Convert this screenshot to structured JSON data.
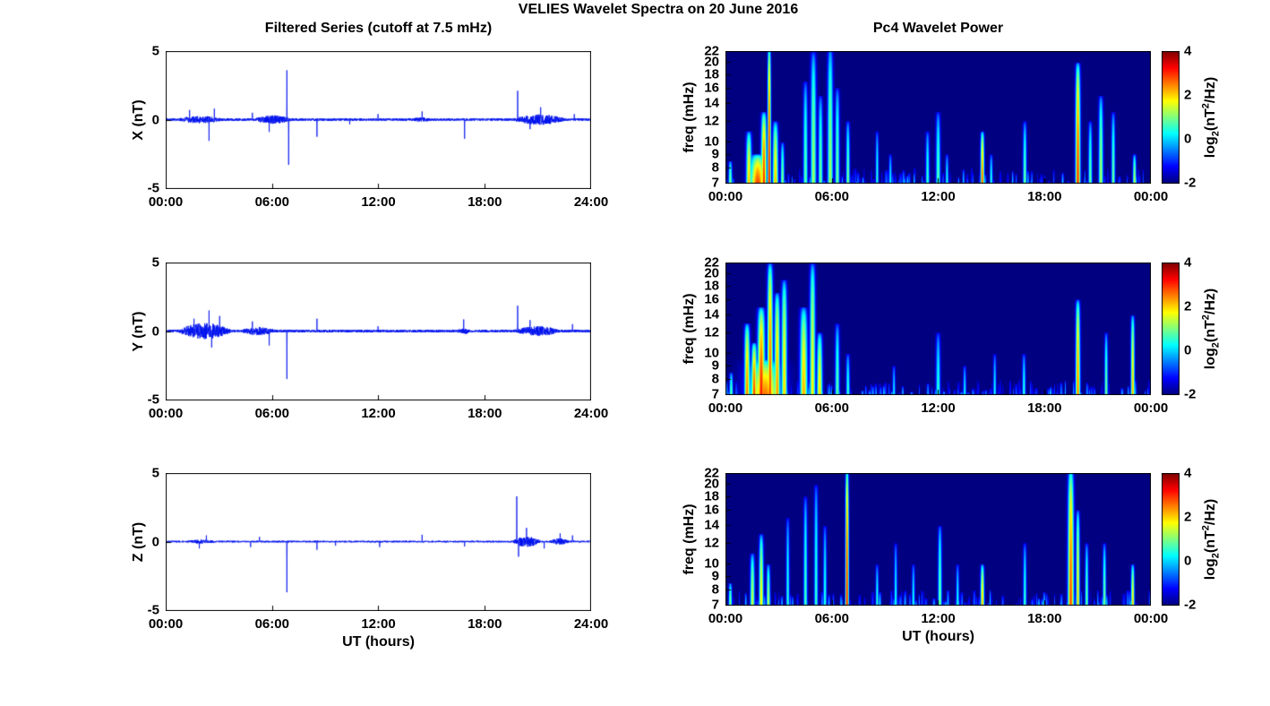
{
  "figure": {
    "title": "VELIES Wavelet Spectra on 20 June 2016",
    "left_title": "Filtered Series (cutoff at 7.5 mHz)",
    "right_title": "Pc4 Wavelet Power",
    "xlabel": "UT (hours)",
    "colorbar": {
      "ticks": [
        4,
        2,
        0,
        -2
      ],
      "clim": [
        -2,
        4
      ],
      "colormap": "jet",
      "label_parts": {
        "log": "log",
        "sub": "2",
        "mid": "(nT",
        "sup": "2",
        "end": "/Hz)"
      }
    }
  },
  "chart_data": [
    {
      "id": "x-filtered-series",
      "type": "line",
      "ylabel": "X (nT)",
      "line_color": "#0010ee",
      "ylim": [
        -5,
        5
      ],
      "yticks": [
        5,
        0,
        -5
      ],
      "xticks": [
        "00:00",
        "06:00",
        "12:00",
        "18:00",
        "24:00"
      ],
      "x_range_hours": [
        0,
        24
      ],
      "seed": 101,
      "noise_base": 0.09,
      "bursts": [
        {
          "t0": 0.7,
          "t1": 3.2,
          "amp": 0.18
        },
        {
          "t0": 5.0,
          "t1": 7.2,
          "amp": 0.22
        },
        {
          "t0": 13.9,
          "t1": 15.0,
          "amp": 0.08
        },
        {
          "t0": 19.7,
          "t1": 22.6,
          "amp": 0.3
        }
      ],
      "spikes": [
        {
          "t": 1.35,
          "amp": 0.7
        },
        {
          "t": 2.45,
          "amp": -1.55
        },
        {
          "t": 2.75,
          "amp": 0.8
        },
        {
          "t": 4.9,
          "amp": 0.5
        },
        {
          "t": 5.85,
          "amp": -0.9
        },
        {
          "t": 6.85,
          "amp": 3.6
        },
        {
          "t": 6.95,
          "amp": -3.3
        },
        {
          "t": 8.55,
          "amp": -1.25
        },
        {
          "t": 10.4,
          "amp": -0.35
        },
        {
          "t": 12.0,
          "amp": 0.4
        },
        {
          "t": 14.5,
          "amp": 0.6
        },
        {
          "t": 16.9,
          "amp": -1.4
        },
        {
          "t": 19.9,
          "amp": 2.1
        },
        {
          "t": 20.6,
          "amp": -0.7
        },
        {
          "t": 21.2,
          "amp": 0.9
        },
        {
          "t": 23.1,
          "amp": 0.4
        }
      ]
    },
    {
      "id": "x-wavelet-power",
      "type": "heatmap",
      "ylabel": "freq (mHz)",
      "freq_range_mhz": [
        7,
        22
      ],
      "freq_scale": "log",
      "yticks": [
        22,
        20,
        18,
        16,
        14,
        12,
        10,
        9,
        8,
        7
      ],
      "xticks": [
        "00:00",
        "06:00",
        "12:00",
        "18:00",
        "00:00"
      ],
      "clim": [
        -2,
        4
      ],
      "colormap": "jet",
      "background_value": -2,
      "seed": 11,
      "features": [
        {
          "t": 0.25,
          "w": 0.1,
          "ftop": 8.5,
          "v": 1.2
        },
        {
          "t": 1.3,
          "w": 0.15,
          "ftop": 11,
          "v": 2.2
        },
        {
          "t": 1.8,
          "w": 0.45,
          "ftop": 9,
          "v": 2.9
        },
        {
          "t": 2.15,
          "w": 0.15,
          "ftop": 13,
          "v": 3.1
        },
        {
          "t": 2.45,
          "w": 0.09,
          "ftop": 23,
          "v": 3.4
        },
        {
          "t": 2.8,
          "w": 0.15,
          "ftop": 12,
          "v": 2.2
        },
        {
          "t": 3.2,
          "w": 0.1,
          "ftop": 10,
          "v": 1.2
        },
        {
          "t": 4.5,
          "w": 0.12,
          "ftop": 17,
          "v": 0.9
        },
        {
          "t": 4.95,
          "w": 0.15,
          "ftop": 22,
          "v": 1.3
        },
        {
          "t": 5.35,
          "w": 0.12,
          "ftop": 15,
          "v": 1.0
        },
        {
          "t": 5.9,
          "w": 0.15,
          "ftop": 23,
          "v": 1.3
        },
        {
          "t": 6.3,
          "w": 0.12,
          "ftop": 16,
          "v": 1.0
        },
        {
          "t": 6.9,
          "w": 0.1,
          "ftop": 12,
          "v": 1.1
        },
        {
          "t": 8.55,
          "w": 0.08,
          "ftop": 11,
          "v": 0.6
        },
        {
          "t": 9.3,
          "w": 0.08,
          "ftop": 9,
          "v": 0.4
        },
        {
          "t": 11.4,
          "w": 0.1,
          "ftop": 11,
          "v": 0.7
        },
        {
          "t": 12.0,
          "w": 0.12,
          "ftop": 13,
          "v": 0.9
        },
        {
          "t": 12.5,
          "w": 0.08,
          "ftop": 9,
          "v": 0.5
        },
        {
          "t": 14.5,
          "w": 0.1,
          "ftop": 11,
          "v": 2.9
        },
        {
          "t": 15.0,
          "w": 0.08,
          "ftop": 9,
          "v": 0.6
        },
        {
          "t": 16.9,
          "w": 0.1,
          "ftop": 12,
          "v": 1.0
        },
        {
          "t": 19.9,
          "w": 0.13,
          "ftop": 20,
          "v": 3.1
        },
        {
          "t": 20.6,
          "w": 0.1,
          "ftop": 12,
          "v": 1.0
        },
        {
          "t": 21.2,
          "w": 0.12,
          "ftop": 15,
          "v": 1.4
        },
        {
          "t": 21.9,
          "w": 0.1,
          "ftop": 13,
          "v": 1.0
        },
        {
          "t": 23.1,
          "w": 0.09,
          "ftop": 9,
          "v": 1.6
        }
      ]
    },
    {
      "id": "y-filtered-series",
      "type": "line",
      "ylabel": "Y (nT)",
      "line_color": "#0010ee",
      "ylim": [
        -5,
        5
      ],
      "yticks": [
        5,
        0,
        -5
      ],
      "xticks": [
        "00:00",
        "06:00",
        "12:00",
        "18:00",
        "24:00"
      ],
      "x_range_hours": [
        0,
        24
      ],
      "seed": 202,
      "noise_base": 0.1,
      "bursts": [
        {
          "t0": 0.7,
          "t1": 3.7,
          "amp": 0.5
        },
        {
          "t0": 4.3,
          "t1": 6.2,
          "amp": 0.2
        },
        {
          "t0": 16.5,
          "t1": 17.3,
          "amp": 0.12
        },
        {
          "t0": 19.7,
          "t1": 22.3,
          "amp": 0.25
        }
      ],
      "spikes": [
        {
          "t": 1.6,
          "amp": 0.9
        },
        {
          "t": 2.45,
          "amp": 1.5
        },
        {
          "t": 2.6,
          "amp": -1.2
        },
        {
          "t": 3.05,
          "amp": 1.1
        },
        {
          "t": 4.9,
          "amp": 0.7
        },
        {
          "t": 5.85,
          "amp": -1.05
        },
        {
          "t": 6.85,
          "amp": -3.5
        },
        {
          "t": 8.55,
          "amp": 0.9
        },
        {
          "t": 12.0,
          "amp": 0.35
        },
        {
          "t": 16.85,
          "amp": 0.85
        },
        {
          "t": 19.9,
          "amp": 1.85
        },
        {
          "t": 20.6,
          "amp": 0.8
        },
        {
          "t": 23.0,
          "amp": 0.5
        }
      ]
    },
    {
      "id": "y-wavelet-power",
      "type": "heatmap",
      "ylabel": "freq (mHz)",
      "freq_range_mhz": [
        7,
        22
      ],
      "freq_scale": "log",
      "yticks": [
        22,
        20,
        18,
        16,
        14,
        12,
        10,
        9,
        8,
        7
      ],
      "xticks": [
        "00:00",
        "06:00",
        "12:00",
        "18:00",
        "00:00"
      ],
      "clim": [
        -2,
        4
      ],
      "colormap": "jet",
      "background_value": -2,
      "seed": 22,
      "features": [
        {
          "t": 0.3,
          "w": 0.1,
          "ftop": 8.5,
          "v": 1.0
        },
        {
          "t": 1.2,
          "w": 0.15,
          "ftop": 13,
          "v": 2.6
        },
        {
          "t": 1.6,
          "w": 0.15,
          "ftop": 11,
          "v": 3.0
        },
        {
          "t": 2.0,
          "w": 0.2,
          "ftop": 15,
          "v": 3.2
        },
        {
          "t": 2.2,
          "w": 0.9,
          "ftop": 9.5,
          "v": 2.6
        },
        {
          "t": 2.5,
          "w": 0.15,
          "ftop": 22,
          "v": 2.9
        },
        {
          "t": 2.9,
          "w": 0.15,
          "ftop": 17,
          "v": 2.5
        },
        {
          "t": 3.3,
          "w": 0.15,
          "ftop": 19,
          "v": 2.1
        },
        {
          "t": 4.4,
          "w": 0.2,
          "ftop": 15,
          "v": 2.3
        },
        {
          "t": 4.9,
          "w": 0.15,
          "ftop": 22,
          "v": 1.9
        },
        {
          "t": 5.3,
          "w": 0.15,
          "ftop": 12,
          "v": 2.1
        },
        {
          "t": 6.3,
          "w": 0.12,
          "ftop": 13,
          "v": 0.9
        },
        {
          "t": 6.9,
          "w": 0.1,
          "ftop": 10,
          "v": 0.7
        },
        {
          "t": 9.5,
          "w": 0.08,
          "ftop": 9,
          "v": 0.3
        },
        {
          "t": 12.0,
          "w": 0.12,
          "ftop": 12,
          "v": 0.6
        },
        {
          "t": 13.5,
          "w": 0.08,
          "ftop": 9,
          "v": 0.4
        },
        {
          "t": 15.2,
          "w": 0.08,
          "ftop": 10,
          "v": 0.4
        },
        {
          "t": 16.85,
          "w": 0.09,
          "ftop": 10,
          "v": 0.6
        },
        {
          "t": 19.9,
          "w": 0.12,
          "ftop": 16,
          "v": 2.7
        },
        {
          "t": 21.5,
          "w": 0.09,
          "ftop": 12,
          "v": 1.1
        },
        {
          "t": 23.0,
          "w": 0.1,
          "ftop": 14,
          "v": 2.3
        }
      ]
    },
    {
      "id": "z-filtered-series",
      "type": "line",
      "ylabel": "Z (nT)",
      "xlabel": "UT (hours)",
      "line_color": "#0010ee",
      "ylim": [
        -5,
        5
      ],
      "yticks": [
        5,
        0,
        -5
      ],
      "xticks": [
        "00:00",
        "06:00",
        "12:00",
        "18:00",
        "24:00"
      ],
      "x_range_hours": [
        0,
        24
      ],
      "seed": 303,
      "noise_base": 0.06,
      "bursts": [
        {
          "t0": 1.2,
          "t1": 2.8,
          "amp": 0.08
        },
        {
          "t0": 19.6,
          "t1": 21.2,
          "amp": 0.35
        },
        {
          "t0": 21.7,
          "t1": 22.8,
          "amp": 0.18
        }
      ],
      "spikes": [
        {
          "t": 1.9,
          "amp": -0.5
        },
        {
          "t": 2.3,
          "amp": 0.45
        },
        {
          "t": 4.8,
          "amp": -0.4
        },
        {
          "t": 5.3,
          "amp": 0.35
        },
        {
          "t": 6.85,
          "amp": -3.7
        },
        {
          "t": 8.55,
          "amp": -0.6
        },
        {
          "t": 9.6,
          "amp": -0.3
        },
        {
          "t": 12.1,
          "amp": -0.4
        },
        {
          "t": 14.5,
          "amp": 0.5
        },
        {
          "t": 16.9,
          "amp": -0.35
        },
        {
          "t": 19.85,
          "amp": 3.3
        },
        {
          "t": 19.95,
          "amp": -1.1
        },
        {
          "t": 20.4,
          "amp": 1.0
        },
        {
          "t": 21.4,
          "amp": -0.5
        },
        {
          "t": 22.3,
          "amp": 0.6
        },
        {
          "t": 23.0,
          "amp": 0.45
        }
      ]
    },
    {
      "id": "z-wavelet-power",
      "type": "heatmap",
      "ylabel": "freq (mHz)",
      "xlabel": "UT (hours)",
      "freq_range_mhz": [
        7,
        22
      ],
      "freq_scale": "log",
      "yticks": [
        22,
        20,
        18,
        16,
        14,
        12,
        10,
        9,
        8,
        7
      ],
      "xticks": [
        "00:00",
        "06:00",
        "12:00",
        "18:00",
        "00:00"
      ],
      "clim": [
        -2,
        4
      ],
      "colormap": "jet",
      "background_value": -2,
      "seed": 33,
      "features": [
        {
          "t": 0.25,
          "w": 0.09,
          "ftop": 8.5,
          "v": 1.3
        },
        {
          "t": 1.5,
          "w": 0.12,
          "ftop": 11,
          "v": 1.6
        },
        {
          "t": 2.0,
          "w": 0.12,
          "ftop": 13,
          "v": 2.0
        },
        {
          "t": 2.4,
          "w": 0.1,
          "ftop": 10,
          "v": 1.5
        },
        {
          "t": 3.5,
          "w": 0.09,
          "ftop": 15,
          "v": 0.6
        },
        {
          "t": 4.5,
          "w": 0.1,
          "ftop": 18,
          "v": 0.8
        },
        {
          "t": 5.1,
          "w": 0.1,
          "ftop": 20,
          "v": 0.7
        },
        {
          "t": 5.6,
          "w": 0.09,
          "ftop": 14,
          "v": 0.6
        },
        {
          "t": 6.85,
          "w": 0.09,
          "ftop": 23,
          "v": 3.3
        },
        {
          "t": 8.55,
          "w": 0.08,
          "ftop": 10,
          "v": 0.6
        },
        {
          "t": 9.6,
          "w": 0.08,
          "ftop": 12,
          "v": 0.5
        },
        {
          "t": 10.6,
          "w": 0.08,
          "ftop": 10,
          "v": 0.5
        },
        {
          "t": 12.1,
          "w": 0.1,
          "ftop": 14,
          "v": 1.1
        },
        {
          "t": 13.1,
          "w": 0.08,
          "ftop": 10,
          "v": 0.5
        },
        {
          "t": 14.5,
          "w": 0.1,
          "ftop": 10,
          "v": 2.4
        },
        {
          "t": 16.9,
          "w": 0.09,
          "ftop": 12,
          "v": 0.7
        },
        {
          "t": 19.5,
          "w": 0.16,
          "ftop": 23,
          "v": 2.9
        },
        {
          "t": 19.9,
          "w": 0.1,
          "ftop": 16,
          "v": 2.1
        },
        {
          "t": 20.4,
          "w": 0.09,
          "ftop": 12,
          "v": 1.0
        },
        {
          "t": 21.4,
          "w": 0.09,
          "ftop": 12,
          "v": 1.1
        },
        {
          "t": 23.0,
          "w": 0.09,
          "ftop": 10,
          "v": 2.2
        }
      ]
    }
  ]
}
